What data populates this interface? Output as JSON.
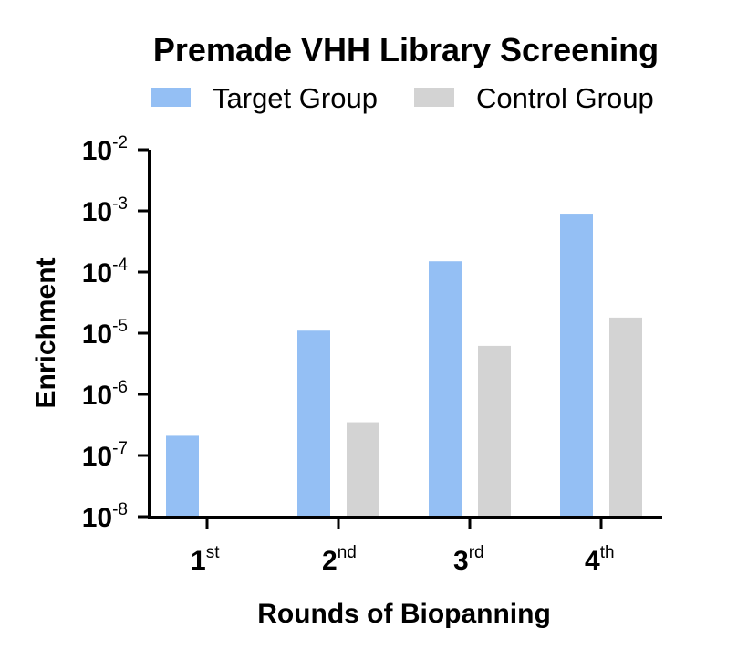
{
  "chart_data": {
    "type": "bar",
    "title": "Premade VHH Library Screening",
    "xlabel": "Rounds of Biopanning",
    "ylabel": "Enrichment",
    "y_scale": "log",
    "ylim": [
      1e-08,
      0.01
    ],
    "categories": [
      {
        "main": "1",
        "sup": "st"
      },
      {
        "main": "2",
        "sup": "nd"
      },
      {
        "main": "3",
        "sup": "rd"
      },
      {
        "main": "4",
        "sup": "th"
      }
    ],
    "y_ticks": [
      {
        "base": "10",
        "exp": "-2",
        "value": 0.01
      },
      {
        "base": "10",
        "exp": "-3",
        "value": 0.001
      },
      {
        "base": "10",
        "exp": "-4",
        "value": 0.0001
      },
      {
        "base": "10",
        "exp": "-5",
        "value": 1e-05
      },
      {
        "base": "10",
        "exp": "-6",
        "value": 1e-06
      },
      {
        "base": "10",
        "exp": "-7",
        "value": 1e-07
      },
      {
        "base": "10",
        "exp": "-8",
        "value": 1e-08
      }
    ],
    "series": [
      {
        "name": "Target Group",
        "color": "#94bff4",
        "values": [
          2.1e-07,
          1.1e-05,
          0.00015,
          0.0009
        ]
      },
      {
        "name": "Control Group",
        "color": "#d3d3d3",
        "values": [
          null,
          3.5e-07,
          6.2e-06,
          1.8e-05
        ]
      }
    ],
    "legend": "top",
    "grid": false
  }
}
